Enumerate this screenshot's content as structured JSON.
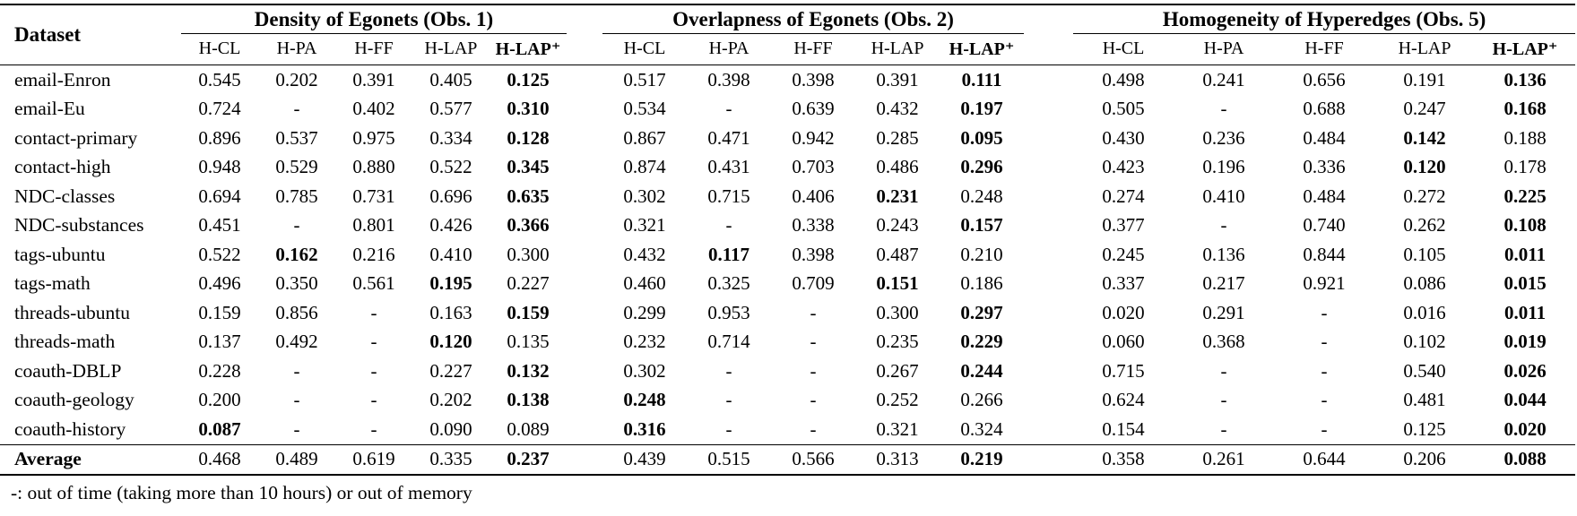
{
  "table": {
    "dataset_header": "Dataset",
    "groups": [
      {
        "title": "Density of Egonets (Obs. 1)",
        "columns": [
          "H-CL",
          "H-PA",
          "H-FF",
          "H-LAP",
          "H-LAP⁺"
        ]
      },
      {
        "title": "Overlapness of Egonets (Obs. 2)",
        "columns": [
          "H-CL",
          "H-PA",
          "H-FF",
          "H-LAP",
          "H-LAP⁺"
        ]
      },
      {
        "title": "Homogeneity of Hyperedges (Obs. 5)",
        "columns": [
          "H-CL",
          "H-PA",
          "H-FF",
          "H-LAP",
          "H-LAP⁺"
        ]
      }
    ],
    "rows": [
      {
        "dataset": "email-Enron",
        "is_average": false,
        "groups": [
          {
            "values": [
              "0.545",
              "0.202",
              "0.391",
              "0.405",
              "0.125"
            ],
            "bold": 4
          },
          {
            "values": [
              "0.517",
              "0.398",
              "0.398",
              "0.391",
              "0.111"
            ],
            "bold": 4
          },
          {
            "values": [
              "0.498",
              "0.241",
              "0.656",
              "0.191",
              "0.136"
            ],
            "bold": 4
          }
        ]
      },
      {
        "dataset": "email-Eu",
        "is_average": false,
        "groups": [
          {
            "values": [
              "0.724",
              "-",
              "0.402",
              "0.577",
              "0.310"
            ],
            "bold": 4
          },
          {
            "values": [
              "0.534",
              "-",
              "0.639",
              "0.432",
              "0.197"
            ],
            "bold": 4
          },
          {
            "values": [
              "0.505",
              "-",
              "0.688",
              "0.247",
              "0.168"
            ],
            "bold": 4
          }
        ]
      },
      {
        "dataset": "contact-primary",
        "is_average": false,
        "groups": [
          {
            "values": [
              "0.896",
              "0.537",
              "0.975",
              "0.334",
              "0.128"
            ],
            "bold": 4
          },
          {
            "values": [
              "0.867",
              "0.471",
              "0.942",
              "0.285",
              "0.095"
            ],
            "bold": 4
          },
          {
            "values": [
              "0.430",
              "0.236",
              "0.484",
              "0.142",
              "0.188"
            ],
            "bold": 3
          }
        ]
      },
      {
        "dataset": "contact-high",
        "is_average": false,
        "groups": [
          {
            "values": [
              "0.948",
              "0.529",
              "0.880",
              "0.522",
              "0.345"
            ],
            "bold": 4
          },
          {
            "values": [
              "0.874",
              "0.431",
              "0.703",
              "0.486",
              "0.296"
            ],
            "bold": 4
          },
          {
            "values": [
              "0.423",
              "0.196",
              "0.336",
              "0.120",
              "0.178"
            ],
            "bold": 3
          }
        ]
      },
      {
        "dataset": "NDC-classes",
        "is_average": false,
        "groups": [
          {
            "values": [
              "0.694",
              "0.785",
              "0.731",
              "0.696",
              "0.635"
            ],
            "bold": 4
          },
          {
            "values": [
              "0.302",
              "0.715",
              "0.406",
              "0.231",
              "0.248"
            ],
            "bold": 3
          },
          {
            "values": [
              "0.274",
              "0.410",
              "0.484",
              "0.272",
              "0.225"
            ],
            "bold": 4
          }
        ]
      },
      {
        "dataset": "NDC-substances",
        "is_average": false,
        "groups": [
          {
            "values": [
              "0.451",
              "-",
              "0.801",
              "0.426",
              "0.366"
            ],
            "bold": 4
          },
          {
            "values": [
              "0.321",
              "-",
              "0.338",
              "0.243",
              "0.157"
            ],
            "bold": 4
          },
          {
            "values": [
              "0.377",
              "-",
              "0.740",
              "0.262",
              "0.108"
            ],
            "bold": 4
          }
        ]
      },
      {
        "dataset": "tags-ubuntu",
        "is_average": false,
        "groups": [
          {
            "values": [
              "0.522",
              "0.162",
              "0.216",
              "0.410",
              "0.300"
            ],
            "bold": 1
          },
          {
            "values": [
              "0.432",
              "0.117",
              "0.398",
              "0.487",
              "0.210"
            ],
            "bold": 1
          },
          {
            "values": [
              "0.245",
              "0.136",
              "0.844",
              "0.105",
              "0.011"
            ],
            "bold": 4
          }
        ]
      },
      {
        "dataset": "tags-math",
        "is_average": false,
        "groups": [
          {
            "values": [
              "0.496",
              "0.350",
              "0.561",
              "0.195",
              "0.227"
            ],
            "bold": 3
          },
          {
            "values": [
              "0.460",
              "0.325",
              "0.709",
              "0.151",
              "0.186"
            ],
            "bold": 3
          },
          {
            "values": [
              "0.337",
              "0.217",
              "0.921",
              "0.086",
              "0.015"
            ],
            "bold": 4
          }
        ]
      },
      {
        "dataset": "threads-ubuntu",
        "is_average": false,
        "groups": [
          {
            "values": [
              "0.159",
              "0.856",
              "-",
              "0.163",
              "0.159"
            ],
            "bold": 4
          },
          {
            "values": [
              "0.299",
              "0.953",
              "-",
              "0.300",
              "0.297"
            ],
            "bold": 4
          },
          {
            "values": [
              "0.020",
              "0.291",
              "-",
              "0.016",
              "0.011"
            ],
            "bold": 4
          }
        ]
      },
      {
        "dataset": "threads-math",
        "is_average": false,
        "groups": [
          {
            "values": [
              "0.137",
              "0.492",
              "-",
              "0.120",
              "0.135"
            ],
            "bold": 3
          },
          {
            "values": [
              "0.232",
              "0.714",
              "-",
              "0.235",
              "0.229"
            ],
            "bold": 4
          },
          {
            "values": [
              "0.060",
              "0.368",
              "-",
              "0.102",
              "0.019"
            ],
            "bold": 4
          }
        ]
      },
      {
        "dataset": "coauth-DBLP",
        "is_average": false,
        "groups": [
          {
            "values": [
              "0.228",
              "-",
              "-",
              "0.227",
              "0.132"
            ],
            "bold": 4
          },
          {
            "values": [
              "0.302",
              "-",
              "-",
              "0.267",
              "0.244"
            ],
            "bold": 4
          },
          {
            "values": [
              "0.715",
              "-",
              "-",
              "0.540",
              "0.026"
            ],
            "bold": 4
          }
        ]
      },
      {
        "dataset": "coauth-geology",
        "is_average": false,
        "groups": [
          {
            "values": [
              "0.200",
              "-",
              "-",
              "0.202",
              "0.138"
            ],
            "bold": 4
          },
          {
            "values": [
              "0.248",
              "-",
              "-",
              "0.252",
              "0.266"
            ],
            "bold": 0
          },
          {
            "values": [
              "0.624",
              "-",
              "-",
              "0.481",
              "0.044"
            ],
            "bold": 4
          }
        ]
      },
      {
        "dataset": "coauth-history",
        "is_average": false,
        "groups": [
          {
            "values": [
              "0.087",
              "-",
              "-",
              "0.090",
              "0.089"
            ],
            "bold": 0
          },
          {
            "values": [
              "0.316",
              "-",
              "-",
              "0.321",
              "0.324"
            ],
            "bold": 0
          },
          {
            "values": [
              "0.154",
              "-",
              "-",
              "0.125",
              "0.020"
            ],
            "bold": 4
          }
        ]
      },
      {
        "dataset": "Average",
        "is_average": true,
        "groups": [
          {
            "values": [
              "0.468",
              "0.489",
              "0.619",
              "0.335",
              "0.237"
            ],
            "bold": 4
          },
          {
            "values": [
              "0.439",
              "0.515",
              "0.566",
              "0.313",
              "0.219"
            ],
            "bold": 4
          },
          {
            "values": [
              "0.358",
              "0.261",
              "0.644",
              "0.206",
              "0.088"
            ],
            "bold": 4
          }
        ]
      }
    ],
    "footnote": "-: out of time (taking more than 10 hours) or out of memory"
  }
}
